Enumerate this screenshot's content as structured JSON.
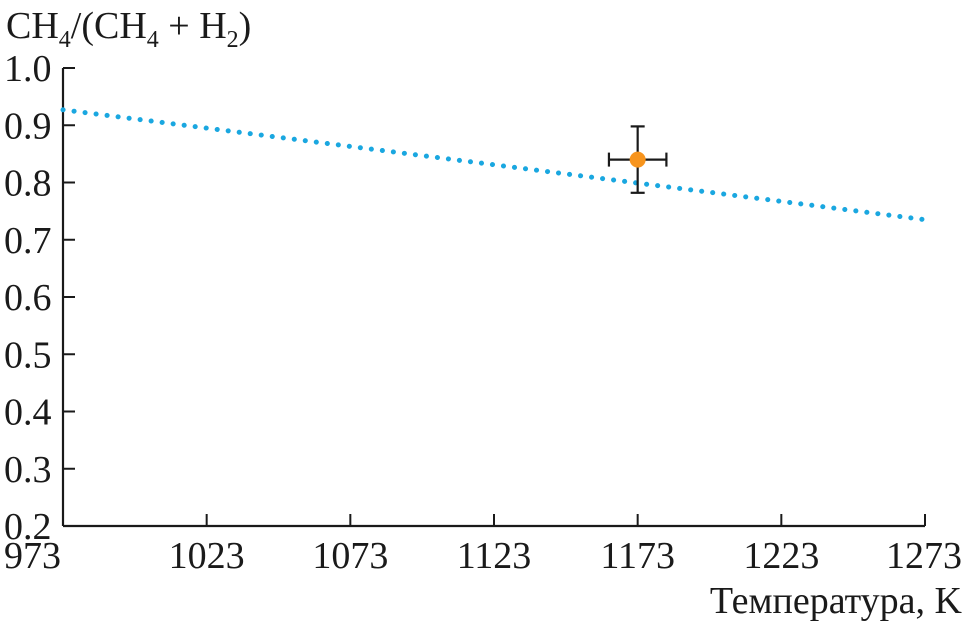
{
  "chart_data": {
    "type": "scatter",
    "ylabel": {
      "part1": "CH",
      "sub1": "4",
      "part2": "/(CH",
      "sub2": "4",
      "part3": " + H",
      "sub3": "2",
      "part4": ")"
    },
    "xlabel": "Температура, K",
    "xlim": [
      973,
      1273
    ],
    "ylim": [
      0.2,
      1.0
    ],
    "xticks": [
      973,
      1023,
      1073,
      1123,
      1173,
      1223,
      1273
    ],
    "xtick_labels": [
      "973",
      "1023",
      "1073",
      "1123",
      "1173",
      "1223",
      "1273"
    ],
    "yticks": [
      0.2,
      0.3,
      0.4,
      0.5,
      0.6,
      0.7,
      0.8,
      0.9,
      1.0
    ],
    "ytick_labels": [
      "0.2",
      "0.3",
      "0.4",
      "0.5",
      "0.6",
      "0.7",
      "0.8",
      "0.9",
      "1.0"
    ],
    "grid": false,
    "series": [
      {
        "kind": "line",
        "style": "dotted",
        "color": "#1aa7e0",
        "x": [
          973,
          1273
        ],
        "y": [
          0.927,
          0.735
        ]
      },
      {
        "kind": "point",
        "color": "#f7941d",
        "x": [
          1173
        ],
        "y": [
          0.84
        ],
        "x_err": 10,
        "y_err_low": 0.058,
        "y_err_high": 0.058
      }
    ]
  }
}
